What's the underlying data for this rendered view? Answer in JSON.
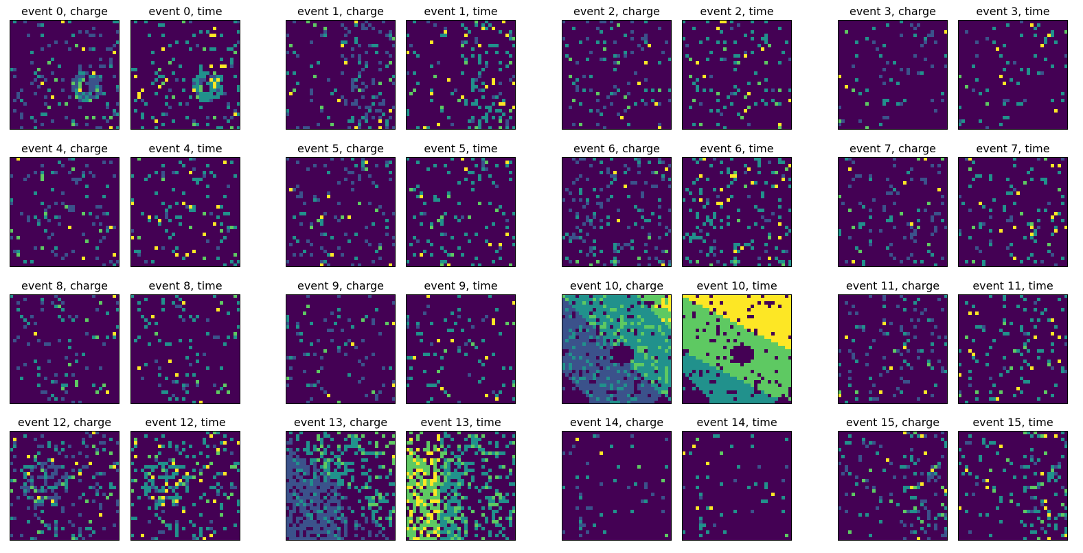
{
  "chart_data": {
    "type": "heatmap",
    "grid": false,
    "colormap": "viridis",
    "colors": [
      "#440154",
      "#3b528b",
      "#21918c",
      "#5ec962",
      "#fde725"
    ],
    "grid_size": [
      32,
      32
    ],
    "panels": [
      {
        "title": "event 0, charge",
        "event": 0,
        "kind": "charge",
        "pattern": "cluster_center_right"
      },
      {
        "title": "event 0, time",
        "event": 0,
        "kind": "time",
        "pattern": "cluster_center_right"
      },
      {
        "title": "event 1, charge",
        "event": 1,
        "kind": "charge",
        "pattern": "sparse_right"
      },
      {
        "title": "event 1, time",
        "event": 1,
        "kind": "time",
        "pattern": "sparse_right"
      },
      {
        "title": "event 2, charge",
        "event": 2,
        "kind": "charge",
        "pattern": "sparse"
      },
      {
        "title": "event 2, time",
        "event": 2,
        "kind": "time",
        "pattern": "sparse"
      },
      {
        "title": "event 3, charge",
        "event": 3,
        "kind": "charge",
        "pattern": "very_sparse"
      },
      {
        "title": "event 3, time",
        "event": 3,
        "kind": "time",
        "pattern": "very_sparse"
      },
      {
        "title": "event 4, charge",
        "event": 4,
        "kind": "charge",
        "pattern": "sparse"
      },
      {
        "title": "event 4, time",
        "event": 4,
        "kind": "time",
        "pattern": "sparse"
      },
      {
        "title": "event 5, charge",
        "event": 5,
        "kind": "charge",
        "pattern": "sparse"
      },
      {
        "title": "event 5, time",
        "event": 5,
        "kind": "time",
        "pattern": "sparse"
      },
      {
        "title": "event 6, charge",
        "event": 6,
        "kind": "charge",
        "pattern": "medium"
      },
      {
        "title": "event 6, time",
        "event": 6,
        "kind": "time",
        "pattern": "medium"
      },
      {
        "title": "event 7, charge",
        "event": 7,
        "kind": "charge",
        "pattern": "sparse"
      },
      {
        "title": "event 7, time",
        "event": 7,
        "kind": "time",
        "pattern": "sparse"
      },
      {
        "title": "event 8, charge",
        "event": 8,
        "kind": "charge",
        "pattern": "sparse"
      },
      {
        "title": "event 8, time",
        "event": 8,
        "kind": "time",
        "pattern": "sparse"
      },
      {
        "title": "event 9, charge",
        "event": 9,
        "kind": "charge",
        "pattern": "sparse"
      },
      {
        "title": "event 9, time",
        "event": 9,
        "kind": "time",
        "pattern": "sparse"
      },
      {
        "title": "event 10, charge",
        "event": 10,
        "kind": "charge",
        "pattern": "ring_dense"
      },
      {
        "title": "event 10, time",
        "event": 10,
        "kind": "time",
        "pattern": "ring_dense"
      },
      {
        "title": "event 11, charge",
        "event": 11,
        "kind": "charge",
        "pattern": "sparse"
      },
      {
        "title": "event 11, time",
        "event": 11,
        "kind": "time",
        "pattern": "sparse"
      },
      {
        "title": "event 12, charge",
        "event": 12,
        "kind": "charge",
        "pattern": "cluster_left"
      },
      {
        "title": "event 12, time",
        "event": 12,
        "kind": "time",
        "pattern": "cluster_left"
      },
      {
        "title": "event 13, charge",
        "event": 13,
        "kind": "charge",
        "pattern": "dense_left"
      },
      {
        "title": "event 13, time",
        "event": 13,
        "kind": "time",
        "pattern": "dense_left"
      },
      {
        "title": "event 14, charge",
        "event": 14,
        "kind": "charge",
        "pattern": "very_sparse"
      },
      {
        "title": "event 14, time",
        "event": 14,
        "kind": "time",
        "pattern": "very_sparse"
      },
      {
        "title": "event 15, charge",
        "event": 15,
        "kind": "charge",
        "pattern": "sparse_right"
      },
      {
        "title": "event 15, time",
        "event": 15,
        "kind": "time",
        "pattern": "sparse_right"
      }
    ]
  }
}
